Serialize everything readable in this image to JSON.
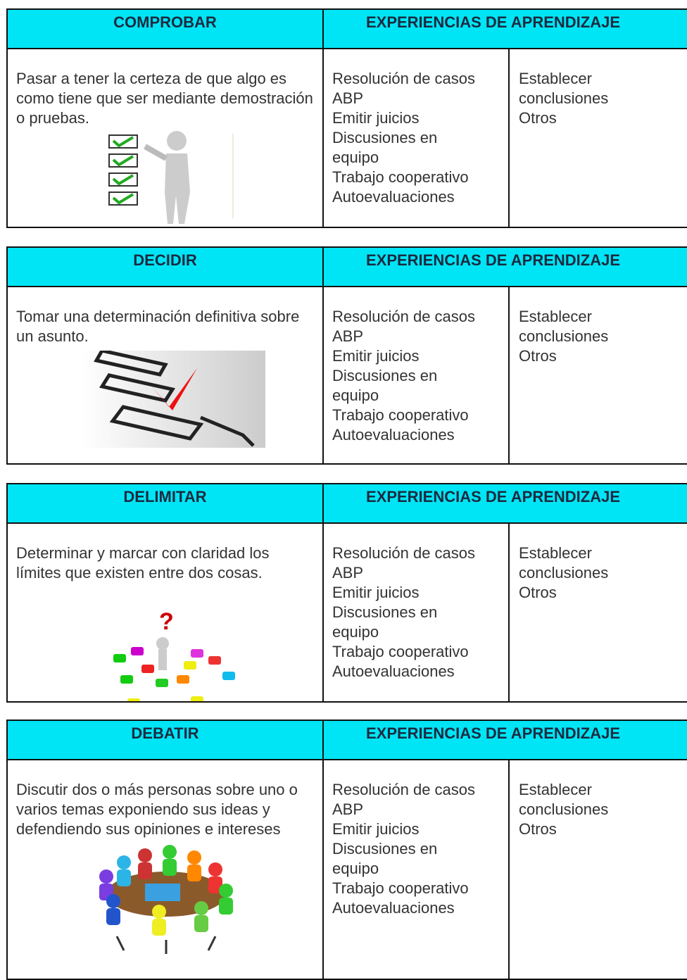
{
  "sections": [
    {
      "title": "COMPROBAR",
      "header": "EXPERIENCIAS DE APRENDIZAJE",
      "description": "Pasar a tener la certeza de que algo es como tiene que ser mediante demostración o pruebas.",
      "experiences": [
        "Resolución de casos",
        "ABP",
        "Emitir juicios",
        "Discusiones en",
        "equipo",
        "Trabajo cooperativo",
        "Autoevaluaciones"
      ],
      "more": [
        "Establecer",
        "conclusiones",
        "Otros"
      ]
    },
    {
      "title": "DECIDIR",
      "header": "EXPERIENCIAS DE APRENDIZAJE",
      "description": "Tomar una determinación definitiva sobre un asunto.",
      "experiences": [
        "Resolución de casos",
        "ABP",
        "Emitir juicios",
        "Discusiones en",
        "equipo",
        "Trabajo cooperativo",
        "Autoevaluaciones"
      ],
      "more": [
        "Establecer",
        "conclusiones",
        "Otros"
      ]
    },
    {
      "title": "DELIMITAR",
      "header": "EXPERIENCIAS DE APRENDIZAJE",
      "description": "Determinar y marcar con claridad los límites que existen entre dos cosas.",
      "experiences": [
        "Resolución de casos",
        "ABP",
        "Emitir juicios",
        "Discusiones en",
        "equipo",
        "Trabajo cooperativo",
        "Autoevaluaciones"
      ],
      "more": [
        "Establecer",
        "conclusiones",
        "Otros"
      ]
    },
    {
      "title": "DEBATIR",
      "header": "EXPERIENCIAS DE APRENDIZAJE",
      "description": "Discutir dos o más personas sobre uno o varios temas exponiendo sus ideas y defendiendo sus opiniones e intereses",
      "experiences": [
        "Resolución de casos",
        "ABP",
        "Emitir juicios",
        "Discusiones en",
        "equipo",
        "Trabajo cooperativo",
        "Autoevaluaciones"
      ],
      "more": [
        "Establecer",
        "conclusiones",
        "Otros"
      ]
    }
  ]
}
